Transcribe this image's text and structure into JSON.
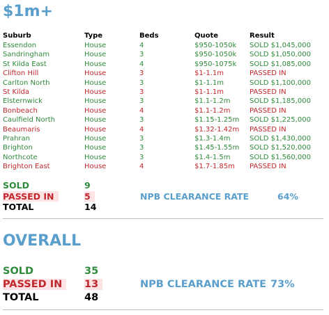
{
  "section1": {
    "title": "$1m+",
    "table": {
      "header": [
        "Suburb",
        "Type",
        "Beds",
        "Quote",
        "Result"
      ],
      "rows": [
        {
          "cells": [
            "Essendon",
            "House",
            4,
            "$950-1050k",
            "SOLD $1,045,000"
          ],
          "color": "#2f8a3c"
        },
        {
          "cells": [
            "Sandringham",
            "House",
            3,
            "$950-1050k",
            "SOLD $1,050,000"
          ],
          "color": "#2f8a3c"
        },
        {
          "cells": [
            "St Kilda East",
            "House",
            4,
            "$950-1075k",
            "SOLD $1,085,000"
          ],
          "color": "#2f8a3c"
        },
        {
          "cells": [
            "Clifton Hill",
            "House",
            3,
            "$1-1.1m",
            "PASSED IN"
          ],
          "color": "#c1272d"
        },
        {
          "cells": [
            "Carlton North",
            "House",
            3,
            "$1-1.1m",
            "SOLD $1,100,000"
          ],
          "color": "#2f8a3c"
        },
        {
          "cells": [
            "St Kilda",
            "House",
            3,
            "$1-1.1m",
            "PASSED IN"
          ],
          "color": "#c1272d"
        },
        {
          "cells": [
            "Elsternwick",
            "House",
            3,
            "$1.1-1.2m",
            "SOLD $1,185,000"
          ],
          "color": "#2f8a3c"
        },
        {
          "cells": [
            "Bonbeach",
            "House",
            4,
            "$1.1-1.2m",
            "PASSED IN"
          ],
          "color": "#c1272d"
        },
        {
          "cells": [
            "Caulfield North",
            "House",
            3,
            "$1.15-1.25m",
            "SOLD $1,225,000"
          ],
          "color": "#2f8a3c"
        },
        {
          "cells": [
            "Beaumaris",
            "House",
            4,
            "$1.32-1.42m",
            "PASSED IN"
          ],
          "color": "#c1272d"
        },
        {
          "cells": [
            "Prahran",
            "House",
            3,
            "$1.3-1.4m",
            "SOLD $1,430,000"
          ],
          "color": "#2f8a3c"
        },
        {
          "cells": [
            "Brighton",
            "House",
            3,
            "$1.45-1.55m",
            "SOLD $1,520,000"
          ],
          "color": "#2f8a3c"
        },
        {
          "cells": [
            "Northcote",
            "House",
            3,
            "$1.4-1.5m",
            "SOLD $1,560,000"
          ],
          "color": "#2f8a3c"
        },
        {
          "cells": [
            "Brighton East",
            "House",
            4,
            "$1.7-1.85m",
            "PASSED IN"
          ],
          "color": "#c1272d"
        }
      ]
    },
    "summary": {
      "sold_label": "SOLD",
      "sold": 9,
      "passed_label": "PASSED IN",
      "passed": 5,
      "total_label": "TOTAL",
      "total": 14,
      "rate_label": "NPB CLEARANCE RATE",
      "rate": "64%"
    }
  },
  "section2": {
    "title": "OVERALL",
    "summary": {
      "sold_label": "SOLD",
      "sold": 35,
      "passed_label": "PASSED IN",
      "passed": 13,
      "total_label": "TOTAL",
      "total": 48,
      "rate_label": "NPB CLEARANCE RATE",
      "rate": "73%"
    }
  }
}
